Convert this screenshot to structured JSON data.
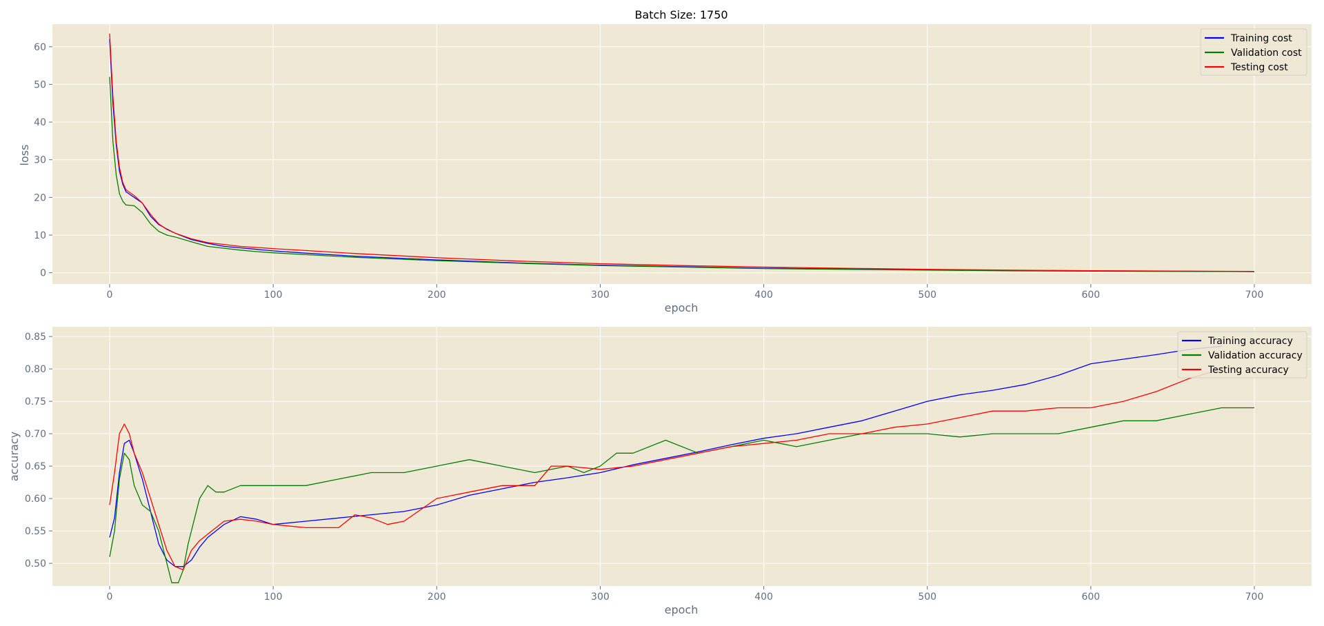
{
  "figure": {
    "background": "#ffffff",
    "plot_background": "#efe8d5",
    "grid_color": "#ffffff"
  },
  "chart_data": [
    {
      "type": "line",
      "title": "Batch Size: 1750",
      "xlabel": "epoch",
      "ylabel": "loss",
      "xlim": [
        -35,
        735
      ],
      "ylim": [
        -3,
        66
      ],
      "xticks": [
        0,
        100,
        200,
        300,
        400,
        500,
        600,
        700
      ],
      "yticks": [
        0,
        10,
        20,
        30,
        40,
        50,
        60
      ],
      "grid": true,
      "legend": "top-right",
      "series": [
        {
          "name": "Training cost",
          "color": "#0000ff",
          "x": [
            0,
            2,
            4,
            6,
            8,
            10,
            15,
            20,
            25,
            30,
            35,
            40,
            50,
            60,
            70,
            80,
            90,
            100,
            120,
            150,
            200,
            250,
            300,
            350,
            400,
            450,
            500,
            550,
            600,
            650,
            700
          ],
          "y": [
            62,
            45,
            34,
            27,
            23.5,
            21.5,
            20,
            18.5,
            15,
            12.8,
            11.6,
            10.5,
            8.8,
            7.8,
            7.0,
            6.6,
            6.2,
            5.8,
            5.2,
            4.4,
            3.4,
            2.6,
            2.0,
            1.6,
            1.2,
            1.0,
            0.8,
            0.6,
            0.5,
            0.4,
            0.3
          ]
        },
        {
          "name": "Validation cost",
          "color": "#008000",
          "x": [
            0,
            2,
            4,
            6,
            8,
            10,
            15,
            20,
            25,
            30,
            35,
            40,
            50,
            60,
            70,
            80,
            90,
            100,
            120,
            150,
            200,
            250,
            300,
            350,
            400,
            450,
            500,
            550,
            600,
            650,
            700
          ],
          "y": [
            52,
            35,
            26,
            21,
            19,
            18,
            17.8,
            16,
            13,
            11,
            10,
            9.5,
            8.2,
            7.0,
            6.5,
            6.0,
            5.6,
            5.3,
            4.8,
            4.1,
            3.2,
            2.5,
            1.9,
            1.5,
            1.1,
            0.9,
            0.7,
            0.5,
            0.4,
            0.35,
            0.3
          ]
        },
        {
          "name": "Testing cost",
          "color": "#ff0000",
          "x": [
            0,
            2,
            4,
            6,
            8,
            10,
            15,
            20,
            25,
            30,
            35,
            40,
            50,
            60,
            70,
            80,
            90,
            100,
            120,
            150,
            200,
            250,
            300,
            350,
            400,
            450,
            500,
            550,
            600,
            650,
            700
          ],
          "y": [
            63.5,
            47,
            35,
            28,
            24,
            22,
            20.5,
            18.5,
            15.5,
            13,
            11.5,
            10.5,
            9.0,
            8.0,
            7.5,
            7.0,
            6.7,
            6.4,
            5.9,
            5.1,
            4.0,
            3.1,
            2.4,
            1.9,
            1.5,
            1.2,
            0.9,
            0.7,
            0.55,
            0.45,
            0.35
          ]
        }
      ]
    },
    {
      "type": "line",
      "title": "",
      "xlabel": "epoch",
      "ylabel": "accuracy",
      "xlim": [
        -35,
        735
      ],
      "ylim": [
        0.465,
        0.865
      ],
      "xticks": [
        0,
        100,
        200,
        300,
        400,
        500,
        600,
        700
      ],
      "yticks": [
        0.5,
        0.55,
        0.6,
        0.65,
        0.7,
        0.75,
        0.8,
        0.85
      ],
      "ytick_labels": [
        "0.50",
        "0.55",
        "0.60",
        "0.65",
        "0.70",
        "0.75",
        "0.80",
        "0.85"
      ],
      "grid": true,
      "legend": "top-right",
      "series": [
        {
          "name": "Training accuracy",
          "color": "#0000ff",
          "x": [
            0,
            3,
            6,
            9,
            12,
            15,
            20,
            25,
            30,
            35,
            40,
            45,
            50,
            55,
            60,
            70,
            80,
            90,
            100,
            120,
            140,
            160,
            180,
            200,
            220,
            240,
            260,
            280,
            300,
            320,
            340,
            360,
            380,
            400,
            420,
            440,
            460,
            480,
            500,
            520,
            540,
            560,
            580,
            600,
            620,
            640,
            660,
            680
          ],
          "y": [
            0.54,
            0.57,
            0.64,
            0.685,
            0.69,
            0.67,
            0.63,
            0.58,
            0.53,
            0.505,
            0.495,
            0.495,
            0.505,
            0.525,
            0.54,
            0.56,
            0.572,
            0.568,
            0.56,
            0.565,
            0.57,
            0.575,
            0.58,
            0.59,
            0.605,
            0.615,
            0.625,
            0.632,
            0.64,
            0.652,
            0.662,
            0.672,
            0.683,
            0.693,
            0.7,
            0.71,
            0.72,
            0.735,
            0.75,
            0.76,
            0.767,
            0.776,
            0.79,
            0.808,
            0.815,
            0.822,
            0.83,
            0.835
          ]
        },
        {
          "name": "Validation accuracy",
          "color": "#008000",
          "x": [
            0,
            3,
            6,
            9,
            12,
            15,
            20,
            25,
            30,
            35,
            38,
            42,
            45,
            48,
            52,
            55,
            60,
            65,
            70,
            80,
            90,
            100,
            120,
            140,
            160,
            180,
            200,
            220,
            240,
            260,
            280,
            290,
            300,
            310,
            320,
            340,
            360,
            380,
            400,
            420,
            440,
            460,
            480,
            500,
            520,
            540,
            560,
            580,
            600,
            620,
            640,
            660,
            680,
            700
          ],
          "y": [
            0.51,
            0.55,
            0.63,
            0.67,
            0.66,
            0.62,
            0.59,
            0.58,
            0.55,
            0.5,
            0.47,
            0.47,
            0.49,
            0.53,
            0.57,
            0.6,
            0.62,
            0.61,
            0.61,
            0.62,
            0.62,
            0.62,
            0.62,
            0.63,
            0.64,
            0.64,
            0.65,
            0.66,
            0.65,
            0.64,
            0.65,
            0.64,
            0.65,
            0.67,
            0.67,
            0.69,
            0.67,
            0.68,
            0.69,
            0.68,
            0.69,
            0.7,
            0.7,
            0.7,
            0.695,
            0.7,
            0.7,
            0.7,
            0.71,
            0.72,
            0.72,
            0.73,
            0.74,
            0.74
          ]
        },
        {
          "name": "Testing accuracy",
          "color": "#ff0000",
          "x": [
            0,
            3,
            6,
            9,
            12,
            15,
            20,
            25,
            30,
            35,
            40,
            45,
            50,
            55,
            60,
            70,
            80,
            90,
            100,
            120,
            140,
            150,
            160,
            170,
            180,
            200,
            220,
            240,
            260,
            270,
            280,
            300,
            320,
            340,
            360,
            380,
            400,
            420,
            440,
            460,
            480,
            500,
            520,
            540,
            560,
            580,
            600,
            620,
            640,
            660,
            680
          ],
          "y": [
            0.59,
            0.64,
            0.7,
            0.715,
            0.7,
            0.67,
            0.64,
            0.6,
            0.56,
            0.52,
            0.495,
            0.49,
            0.52,
            0.535,
            0.545,
            0.565,
            0.568,
            0.565,
            0.56,
            0.555,
            0.555,
            0.575,
            0.57,
            0.56,
            0.565,
            0.6,
            0.61,
            0.62,
            0.62,
            0.65,
            0.65,
            0.645,
            0.65,
            0.66,
            0.67,
            0.68,
            0.685,
            0.69,
            0.7,
            0.7,
            0.71,
            0.715,
            0.725,
            0.735,
            0.735,
            0.74,
            0.74,
            0.75,
            0.765,
            0.785,
            0.8
          ]
        }
      ]
    }
  ]
}
